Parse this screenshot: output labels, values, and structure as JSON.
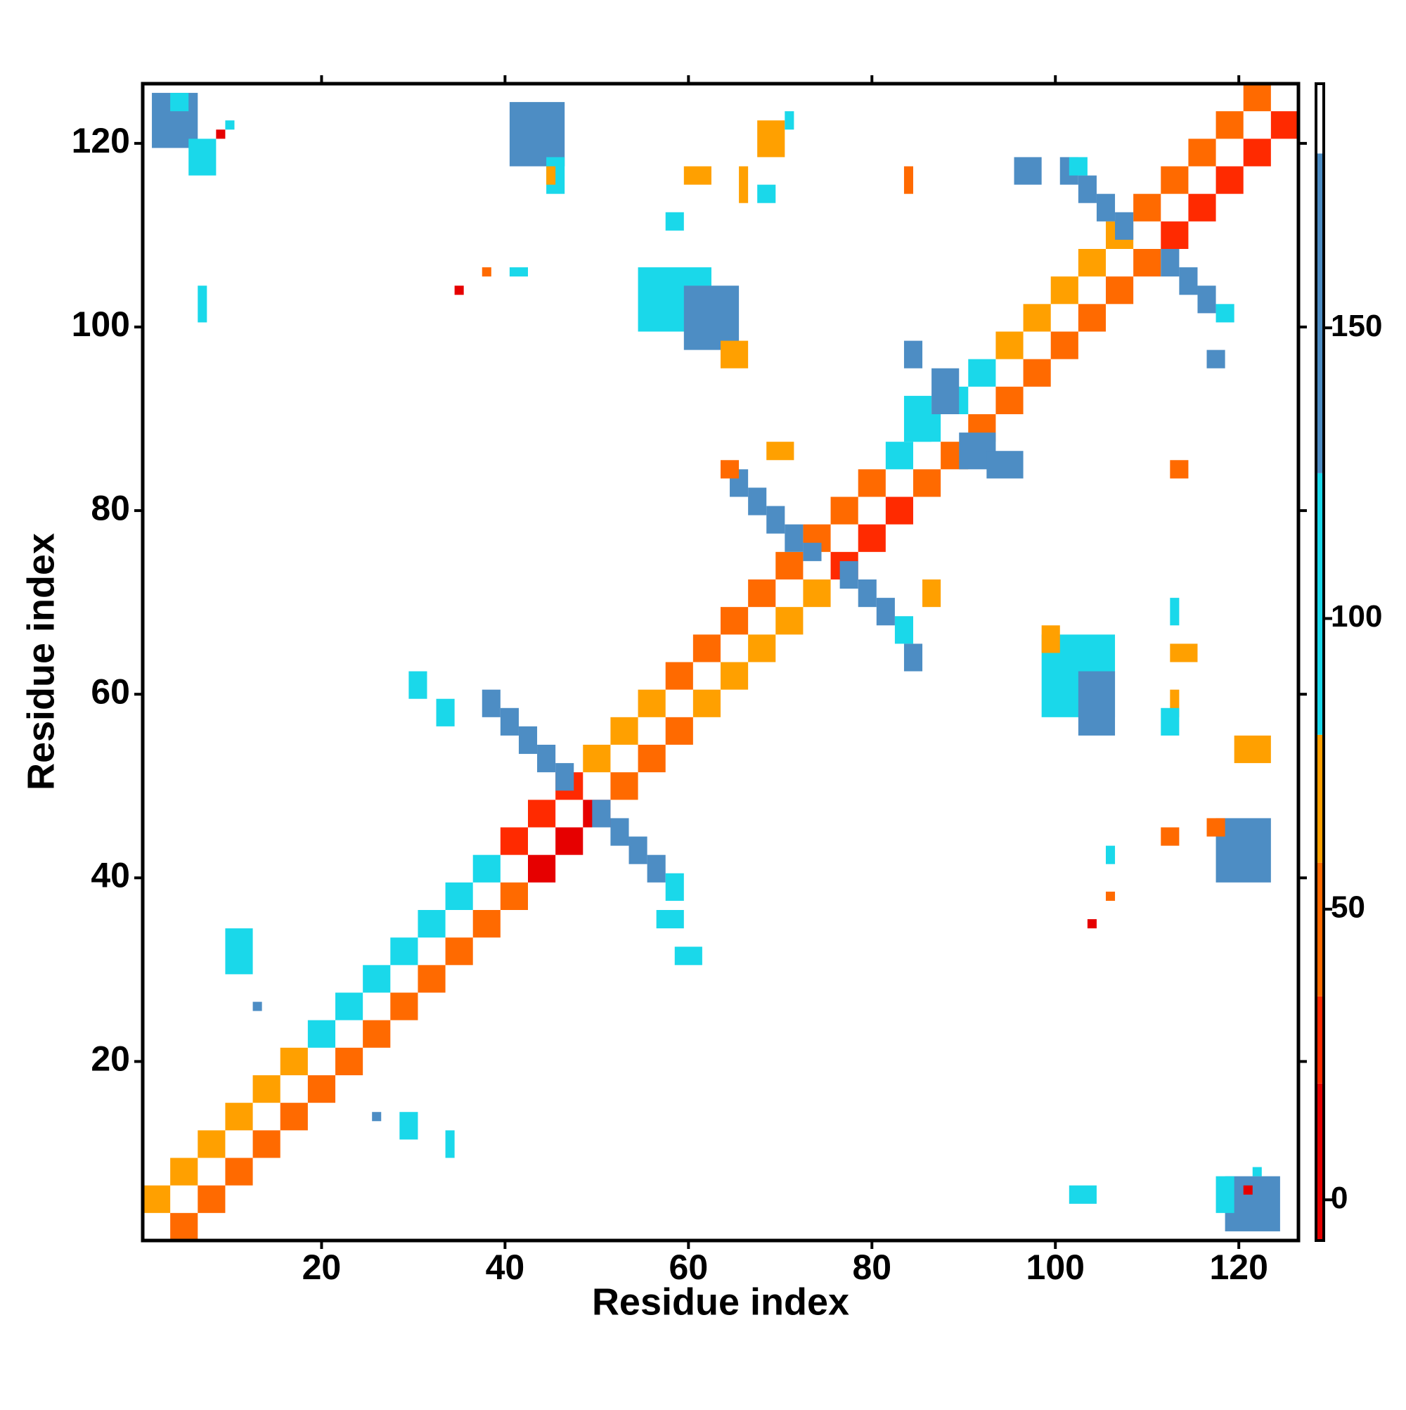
{
  "chart_data": {
    "type": "heatmap",
    "x_label": "Residue index",
    "y_label": "Residue index",
    "xlim": [
      0.5,
      126.5
    ],
    "ylim": [
      0.5,
      126.5
    ],
    "xticks": [
      20,
      40,
      60,
      80,
      100,
      120
    ],
    "yticks": [
      20,
      40,
      60,
      80,
      100,
      120
    ],
    "colorbar": {
      "lim": [
        -7,
        192
      ],
      "ticks": [
        0,
        50,
        100,
        150
      ],
      "bands": [
        {
          "from": -7,
          "to": 20,
          "color": "#e60000"
        },
        {
          "from": 20,
          "to": 35,
          "color": "#ff2a00"
        },
        {
          "from": 35,
          "to": 58,
          "color": "#ff6a00"
        },
        {
          "from": 58,
          "to": 80,
          "color": "#ffa000"
        },
        {
          "from": 80,
          "to": 125,
          "color": "#1ad8ea"
        },
        {
          "from": 125,
          "to": 180,
          "color": "#4d8dc4"
        },
        {
          "from": 180,
          "to": 192,
          "color": "#ffffff"
        }
      ]
    },
    "cells": [
      [
        4,
        6,
        1,
        3,
        40
      ],
      [
        1,
        3,
        4,
        6,
        65
      ],
      [
        7,
        9,
        4,
        6,
        40
      ],
      [
        4,
        6,
        7,
        9,
        65
      ],
      [
        10,
        12,
        7,
        9,
        40
      ],
      [
        7,
        9,
        10,
        12,
        65
      ],
      [
        13,
        15,
        10,
        12,
        40
      ],
      [
        10,
        12,
        13,
        15,
        65
      ],
      [
        16,
        18,
        13,
        15,
        40
      ],
      [
        13,
        15,
        16,
        18,
        65
      ],
      [
        19,
        21,
        16,
        18,
        40
      ],
      [
        16,
        18,
        19,
        21,
        65
      ],
      [
        22,
        24,
        19,
        21,
        45
      ],
      [
        19,
        21,
        22,
        24,
        90
      ],
      [
        25,
        27,
        22,
        24,
        45
      ],
      [
        22,
        24,
        25,
        27,
        90
      ],
      [
        28,
        30,
        25,
        27,
        45
      ],
      [
        25,
        27,
        28,
        30,
        90
      ],
      [
        31,
        33,
        28,
        30,
        45
      ],
      [
        28,
        30,
        31,
        33,
        90
      ],
      [
        34,
        36,
        31,
        33,
        45
      ],
      [
        31,
        33,
        34,
        36,
        90
      ],
      [
        37,
        39,
        34,
        36,
        45
      ],
      [
        34,
        36,
        37,
        39,
        90
      ],
      [
        40,
        42,
        37,
        39,
        45
      ],
      [
        37,
        39,
        40,
        42,
        90
      ],
      [
        43,
        45,
        40,
        42,
        15
      ],
      [
        40,
        42,
        43,
        45,
        20
      ],
      [
        46,
        48,
        43,
        45,
        15
      ],
      [
        43,
        45,
        46,
        48,
        20
      ],
      [
        49,
        51,
        46,
        48,
        15
      ],
      [
        46,
        48,
        49,
        51,
        20
      ],
      [
        52,
        54,
        49,
        51,
        35
      ],
      [
        49,
        51,
        52,
        54,
        65
      ],
      [
        55,
        57,
        52,
        54,
        35
      ],
      [
        52,
        54,
        55,
        57,
        65
      ],
      [
        58,
        60,
        55,
        57,
        35
      ],
      [
        55,
        57,
        58,
        60,
        65
      ],
      [
        61,
        63,
        58,
        60,
        65
      ],
      [
        58,
        60,
        61,
        63,
        45
      ],
      [
        64,
        66,
        61,
        63,
        65
      ],
      [
        61,
        63,
        64,
        66,
        45
      ],
      [
        67,
        69,
        64,
        66,
        65
      ],
      [
        64,
        66,
        67,
        69,
        45
      ],
      [
        70,
        72,
        67,
        69,
        65
      ],
      [
        67,
        69,
        70,
        72,
        45
      ],
      [
        73,
        75,
        70,
        72,
        65
      ],
      [
        70,
        72,
        73,
        75,
        45
      ],
      [
        76,
        78,
        73,
        75,
        20
      ],
      [
        73,
        75,
        76,
        78,
        40
      ],
      [
        79,
        81,
        76,
        78,
        20
      ],
      [
        76,
        78,
        79,
        81,
        40
      ],
      [
        82,
        84,
        79,
        81,
        20
      ],
      [
        79,
        81,
        82,
        84,
        40
      ],
      [
        85,
        87,
        82,
        84,
        45
      ],
      [
        82,
        84,
        85,
        87,
        95
      ],
      [
        88,
        90,
        85,
        87,
        45
      ],
      [
        85,
        87,
        88,
        90,
        95
      ],
      [
        91,
        93,
        88,
        90,
        45
      ],
      [
        88,
        90,
        91,
        93,
        95
      ],
      [
        94,
        96,
        91,
        93,
        45
      ],
      [
        91,
        93,
        94,
        96,
        95
      ],
      [
        97,
        99,
        94,
        96,
        40
      ],
      [
        94,
        96,
        97,
        99,
        65
      ],
      [
        100,
        102,
        97,
        99,
        40
      ],
      [
        97,
        99,
        100,
        102,
        65
      ],
      [
        103,
        105,
        100,
        102,
        40
      ],
      [
        100,
        102,
        103,
        105,
        65
      ],
      [
        106,
        108,
        103,
        105,
        40
      ],
      [
        103,
        105,
        106,
        108,
        65
      ],
      [
        109,
        111,
        106,
        108,
        40
      ],
      [
        106,
        108,
        109,
        111,
        65
      ],
      [
        112,
        114,
        109,
        111,
        25
      ],
      [
        109,
        111,
        112,
        114,
        45
      ],
      [
        115,
        117,
        112,
        114,
        25
      ],
      [
        112,
        114,
        115,
        117,
        45
      ],
      [
        118,
        120,
        115,
        117,
        25
      ],
      [
        115,
        117,
        118,
        120,
        45
      ],
      [
        121,
        123,
        118,
        120,
        25
      ],
      [
        118,
        120,
        121,
        123,
        45
      ],
      [
        124,
        126,
        121,
        123,
        25
      ],
      [
        121,
        123,
        124,
        126,
        45
      ],
      [
        38,
        39,
        58,
        60,
        140
      ],
      [
        40,
        41,
        56,
        58,
        140
      ],
      [
        42,
        43,
        54,
        56,
        140
      ],
      [
        44,
        45,
        52,
        54,
        140
      ],
      [
        46,
        47,
        50,
        52,
        140
      ],
      [
        30,
        31,
        60,
        62,
        95
      ],
      [
        33,
        34,
        57,
        59,
        95
      ],
      [
        50,
        51,
        46,
        48,
        140
      ],
      [
        52,
        53,
        44,
        46,
        140
      ],
      [
        54,
        55,
        42,
        44,
        140
      ],
      [
        56,
        57,
        40,
        42,
        140
      ],
      [
        58,
        59,
        38,
        40,
        95
      ],
      [
        57,
        59,
        35,
        36,
        95
      ],
      [
        59,
        61,
        31,
        32,
        95
      ],
      [
        65,
        66,
        82,
        84,
        140
      ],
      [
        67,
        68,
        80,
        82,
        140
      ],
      [
        69,
        70,
        78,
        80,
        140
      ],
      [
        71,
        72,
        76,
        78,
        140
      ],
      [
        73,
        74,
        75,
        76,
        140
      ],
      [
        77,
        78,
        72,
        74,
        140
      ],
      [
        79,
        80,
        70,
        72,
        140
      ],
      [
        81,
        82,
        68,
        70,
        140
      ],
      [
        83,
        84,
        66,
        68,
        95
      ],
      [
        84,
        85,
        63,
        65,
        140
      ],
      [
        64,
        65,
        84,
        85,
        45
      ],
      [
        69,
        71,
        86,
        87,
        65
      ],
      [
        86,
        87,
        70,
        72,
        65
      ],
      [
        101,
        102,
        116,
        118,
        140
      ],
      [
        103,
        104,
        114,
        116,
        140
      ],
      [
        105,
        106,
        112,
        114,
        140
      ],
      [
        107,
        108,
        110,
        112,
        140
      ],
      [
        112,
        113,
        106,
        108,
        140
      ],
      [
        114,
        115,
        104,
        106,
        140
      ],
      [
        116,
        117,
        102,
        104,
        140
      ],
      [
        118,
        119,
        101,
        102,
        95
      ],
      [
        102,
        103,
        117,
        118,
        95
      ],
      [
        84,
        86,
        88,
        92,
        95
      ],
      [
        87,
        89,
        91,
        95,
        140
      ],
      [
        90,
        93,
        85,
        88,
        140
      ],
      [
        93,
        96,
        84,
        86,
        140
      ],
      [
        84,
        85,
        96,
        98,
        140
      ],
      [
        2,
        6,
        120,
        125,
        140
      ],
      [
        6,
        8,
        117,
        120,
        95
      ],
      [
        4,
        5,
        124,
        125,
        95
      ],
      [
        9,
        9,
        121,
        121,
        15
      ],
      [
        10,
        10,
        122,
        122,
        95
      ],
      [
        119,
        124,
        2,
        7,
        140
      ],
      [
        118,
        119,
        4,
        7,
        95
      ],
      [
        121,
        121,
        6,
        6,
        15
      ],
      [
        122,
        122,
        8,
        8,
        95
      ],
      [
        41,
        46,
        118,
        124,
        140
      ],
      [
        45,
        46,
        115,
        118,
        95
      ],
      [
        45,
        45,
        116,
        117,
        65
      ],
      [
        118,
        123,
        40,
        46,
        140
      ],
      [
        117,
        118,
        45,
        46,
        45
      ],
      [
        55,
        62,
        100,
        106,
        95
      ],
      [
        60,
        65,
        98,
        104,
        140
      ],
      [
        64,
        66,
        96,
        98,
        65
      ],
      [
        99,
        106,
        58,
        66,
        95
      ],
      [
        103,
        106,
        56,
        62,
        140
      ],
      [
        99,
        100,
        65,
        67,
        65
      ],
      [
        7,
        7,
        101,
        104,
        95
      ],
      [
        10,
        12,
        30,
        34,
        95
      ],
      [
        13,
        13,
        26,
        26,
        140
      ],
      [
        102,
        104,
        5,
        6,
        95
      ],
      [
        26,
        26,
        14,
        14,
        140
      ],
      [
        29,
        30,
        12,
        14,
        95
      ],
      [
        34,
        34,
        10,
        12,
        95
      ],
      [
        68,
        70,
        119,
        122,
        65
      ],
      [
        71,
        71,
        122,
        123,
        95
      ],
      [
        60,
        62,
        116,
        117,
        65
      ],
      [
        66,
        66,
        114,
        117,
        65
      ],
      [
        68,
        69,
        114,
        115,
        95
      ],
      [
        58,
        59,
        111,
        112,
        95
      ],
      [
        35,
        35,
        104,
        104,
        15
      ],
      [
        38,
        38,
        106,
        106,
        45
      ],
      [
        41,
        42,
        106,
        106,
        95
      ],
      [
        84,
        84,
        115,
        117,
        45
      ],
      [
        96,
        98,
        116,
        118,
        140
      ],
      [
        104,
        104,
        35,
        35,
        15
      ],
      [
        106,
        106,
        38,
        38,
        45
      ],
      [
        106,
        106,
        42,
        43,
        95
      ],
      [
        113,
        115,
        64,
        65,
        65
      ],
      [
        113,
        113,
        68,
        70,
        95
      ],
      [
        113,
        113,
        58,
        60,
        65
      ],
      [
        112,
        113,
        56,
        58,
        95
      ],
      [
        120,
        123,
        53,
        55,
        65
      ],
      [
        113,
        114,
        84,
        85,
        45
      ],
      [
        117,
        118,
        96,
        97,
        140
      ],
      [
        112,
        113,
        44,
        45,
        45
      ]
    ]
  }
}
